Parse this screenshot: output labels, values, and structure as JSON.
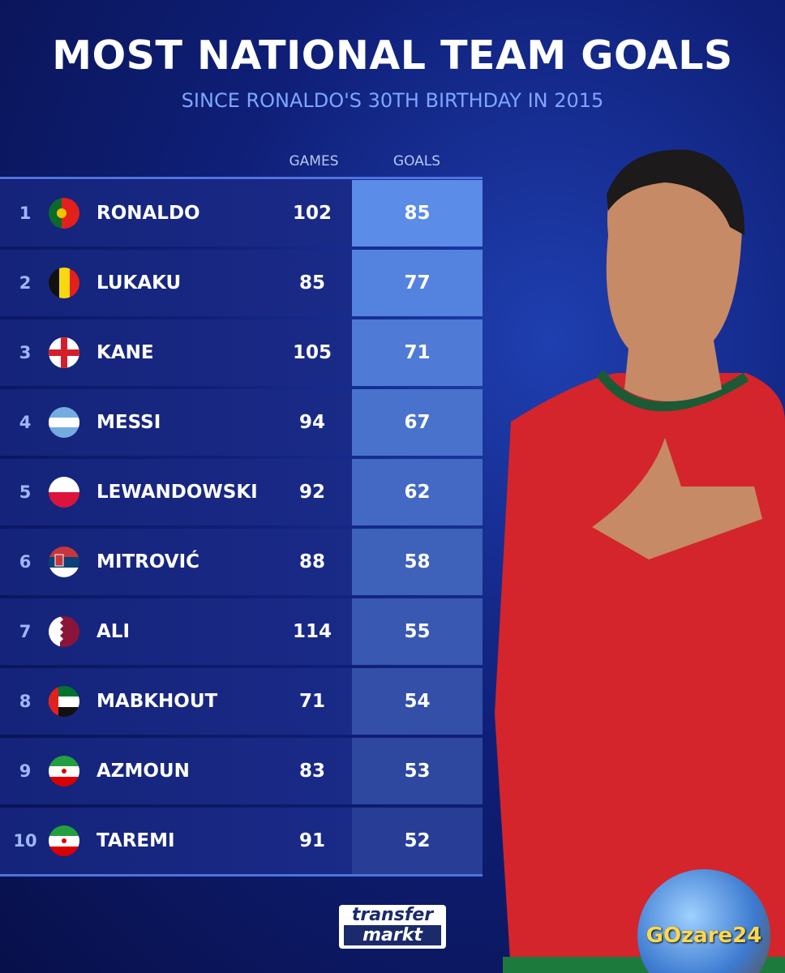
{
  "header": {
    "title": "MOST NATIONAL TEAM GOALS",
    "subtitle": "SINCE RONALDO'S 30TH BIRTHDAY IN 2015"
  },
  "table": {
    "columns": [
      "GAMES",
      "GOALS"
    ],
    "rows": [
      {
        "rank": "1",
        "name": "RONALDO",
        "games": 102,
        "goals": 85
      },
      {
        "rank": "2",
        "name": "LUKAKU",
        "games": 85,
        "goals": 77
      },
      {
        "rank": "3",
        "name": "KANE",
        "games": 105,
        "goals": 71
      },
      {
        "rank": "4",
        "name": "MESSI",
        "games": 94,
        "goals": 67
      },
      {
        "rank": "5",
        "name": "LEWANDOWSKI",
        "games": 92,
        "goals": 62
      },
      {
        "rank": "6",
        "name": "MITROVIĆ",
        "games": 88,
        "goals": 58
      },
      {
        "rank": "7",
        "name": "ALI",
        "games": 114,
        "goals": 55
      },
      {
        "rank": "8",
        "name": "MABKHOUT",
        "games": 71,
        "goals": 54
      },
      {
        "rank": "9",
        "name": "AZMOUN",
        "games": 83,
        "goals": 53
      },
      {
        "rank": "10",
        "name": "TAREMI",
        "games": 91,
        "goals": 52
      }
    ]
  },
  "logo": {
    "line1": "transfer",
    "line2": "markt"
  },
  "watermark": "GOzare24"
}
